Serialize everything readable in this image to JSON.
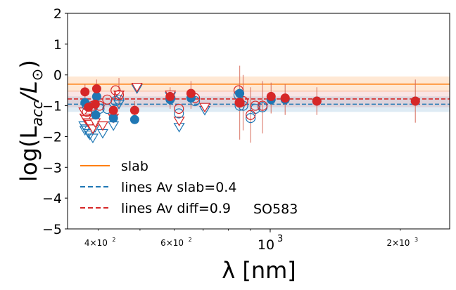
{
  "chart_data": {
    "type": "scatter",
    "xlabel": "λ [nm]",
    "ylabel": "log(L_acc/L_⊙)",
    "annotation": "SO583",
    "xscale": "log",
    "xlim": [
      340,
      2600
    ],
    "ylim": [
      -5,
      2
    ],
    "yticks": [
      2,
      1,
      0,
      -1,
      -2,
      -3,
      -4,
      -5
    ],
    "yticklabels": [
      "2",
      "1",
      "0",
      "−1",
      "−2",
      "−3",
      "−4",
      "−5"
    ],
    "xticks_major": [
      {
        "value": 1000,
        "label": "10",
        "exp": "3"
      }
    ],
    "xticks_minor_labeled": [
      {
        "value": 400,
        "mant": "4",
        "exp": "2"
      },
      {
        "value": 600,
        "mant": "6",
        "exp": "2"
      },
      {
        "value": 2000,
        "mant": "2",
        "exp": "3"
      }
    ],
    "legend": [
      {
        "label": "slab",
        "color": "#ff7f0e",
        "style": "solid"
      },
      {
        "label": "lines Av slab=0.4",
        "color": "#1f77b4",
        "style": "dashed"
      },
      {
        "label": "lines Av diff=0.9",
        "color": "#d62728",
        "style": "dashed"
      }
    ],
    "lines": [
      {
        "name": "slab",
        "y": -0.3,
        "band": [
          -0.55,
          -0.05
        ],
        "color": "#ff7f0e"
      },
      {
        "name": "lines Av slab=0.4",
        "y": -0.95,
        "band": [
          -1.2,
          -0.7
        ],
        "color": "#1f77b4"
      },
      {
        "name": "lines Av diff=0.9",
        "y": -0.78,
        "band": [
          -1.05,
          -0.5
        ],
        "color": "#d62728"
      }
    ],
    "blue_filled": [
      [
        373,
        -0.9
      ],
      [
        395,
        -1.3
      ],
      [
        397,
        -0.7
      ],
      [
        434,
        -1.4
      ],
      [
        486,
        -1.45
      ],
      [
        587,
        -0.8
      ],
      [
        656,
        -0.75
      ],
      [
        850,
        -0.6
      ],
      [
        1005,
        -0.8
      ],
      [
        1083,
        -0.8
      ],
      [
        1282,
        -0.85
      ],
      [
        2166,
        -0.85
      ]
    ],
    "red_filled": [
      [
        373,
        -0.55
      ],
      [
        380,
        -1.05
      ],
      [
        394,
        -0.95
      ],
      [
        397,
        -0.45
      ],
      [
        434,
        -1.15
      ],
      [
        486,
        -1.15
      ],
      [
        587,
        -0.7
      ],
      [
        656,
        -0.6
      ],
      [
        850,
        -0.9
      ],
      [
        1005,
        -0.7
      ],
      [
        1083,
        -0.75
      ],
      [
        1282,
        -0.85
      ],
      [
        2166,
        -0.85
      ]
    ],
    "blue_open_circles": [
      [
        377,
        -1.0
      ],
      [
        389,
        -1.05
      ],
      [
        403,
        -1.1
      ],
      [
        420,
        -1.1
      ],
      [
        439,
        -0.85
      ],
      [
        447,
        -0.8
      ],
      [
        588,
        -0.75
      ],
      [
        615,
        -1.25
      ],
      [
        670,
        -0.85
      ],
      [
        845,
        -0.65
      ],
      [
        850,
        -1.0
      ],
      [
        866,
        -1.0
      ],
      [
        901,
        -1.4
      ],
      [
        924,
        -1.1
      ],
      [
        960,
        -1.05
      ]
    ],
    "red_open_circles": [
      [
        377,
        -1.2
      ],
      [
        389,
        -1.0
      ],
      [
        403,
        -1.0
      ],
      [
        420,
        -0.8
      ],
      [
        439,
        -0.5
      ],
      [
        447,
        -0.65
      ],
      [
        615,
        -1.1
      ],
      [
        670,
        -0.75
      ],
      [
        845,
        -0.5
      ],
      [
        850,
        -0.9
      ],
      [
        866,
        -0.85
      ],
      [
        901,
        -1.3
      ],
      [
        924,
        -1.0
      ],
      [
        960,
        -1.0
      ]
    ],
    "blue_triangles": [
      [
        371,
        -1.65
      ],
      [
        373,
        -1.8
      ],
      [
        375,
        -1.75
      ],
      [
        380,
        -1.9
      ],
      [
        383,
        -1.95
      ],
      [
        389,
        -2.05
      ],
      [
        394,
        -1.7
      ],
      [
        410,
        -1.9
      ],
      [
        434,
        -1.65
      ],
      [
        447,
        -0.95
      ],
      [
        492,
        -0.45
      ],
      [
        588,
        -0.7
      ],
      [
        616,
        -1.7
      ],
      [
        706,
        -1.15
      ]
    ],
    "red_triangles": [
      [
        371,
        -1.2
      ],
      [
        373,
        -1.4
      ],
      [
        375,
        -1.45
      ],
      [
        380,
        -1.55
      ],
      [
        383,
        -1.6
      ],
      [
        389,
        -1.75
      ],
      [
        394,
        -1.55
      ],
      [
        410,
        -1.65
      ],
      [
        434,
        -1.4
      ],
      [
        447,
        -0.65
      ],
      [
        492,
        -0.4
      ],
      [
        588,
        -0.65
      ],
      [
        616,
        -1.5
      ],
      [
        706,
        -1.05
      ]
    ],
    "error_bars": [
      [
        850,
        -0.9,
        1.2
      ],
      [
        866,
        -0.9,
        0.9
      ],
      [
        901,
        -1.3,
        0.9
      ],
      [
        960,
        -1.05,
        0.85
      ],
      [
        1005,
        -0.75,
        0.5
      ],
      [
        1083,
        -0.8,
        0.5
      ],
      [
        1282,
        -0.85,
        0.45
      ],
      [
        2166,
        -0.85,
        0.7
      ],
      [
        373,
        -0.6,
        0.3
      ],
      [
        397,
        -0.5,
        0.35
      ],
      [
        587,
        -0.75,
        0.35
      ],
      [
        656,
        -0.65,
        0.45
      ],
      [
        447,
        -0.6,
        0.5
      ],
      [
        486,
        -1.2,
        0.35
      ]
    ]
  }
}
